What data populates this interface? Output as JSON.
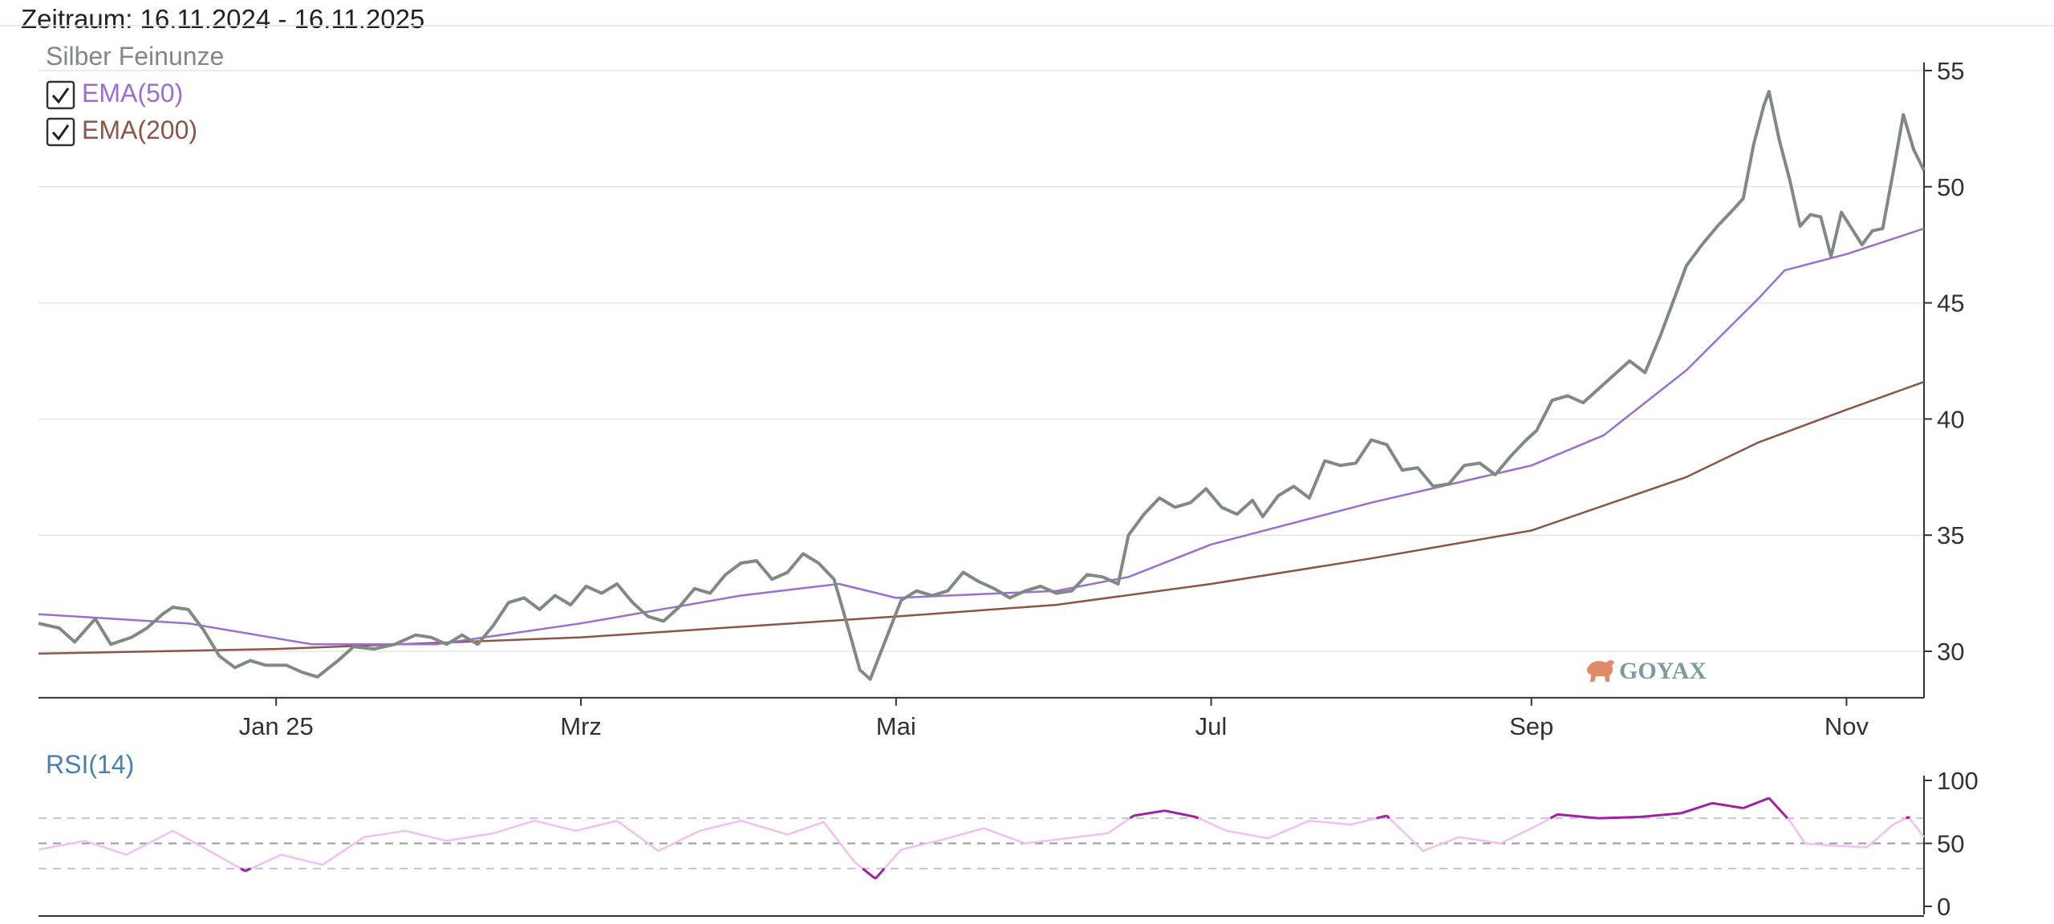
{
  "header": {
    "period_label": "Zeitraum: 16.11.2024 - 16.11.2025"
  },
  "watermark": {
    "text": "GOYAX",
    "icon": "bull-icon",
    "color": "#7d9aa3",
    "icon_color": "#e08a67"
  },
  "legend": [
    {
      "label": "Silber Feinunze",
      "color": "#7f8a80",
      "checkbox": false
    },
    {
      "label": "EMA(50)",
      "color": "#9b6fcf",
      "checkbox": true,
      "checked": true
    },
    {
      "label": "EMA(200)",
      "color": "#8c5547",
      "checkbox": true,
      "checked": true
    }
  ],
  "chart_data": [
    {
      "type": "line",
      "x_range": [
        "2024-11-16",
        "2025-11-16"
      ],
      "y_range": [
        28,
        55
      ],
      "grid": "horizontal",
      "x_ticks": [
        {
          "label": "Jan 25",
          "date": "2025-01-01"
        },
        {
          "label": "Mrz",
          "date": "2025-03-01"
        },
        {
          "label": "Mai",
          "date": "2025-05-01"
        },
        {
          "label": "Jul",
          "date": "2025-07-01"
        },
        {
          "label": "Sep",
          "date": "2025-09-01"
        },
        {
          "label": "Nov",
          "date": "2025-11-01"
        }
      ],
      "y_ticks": [
        30,
        35,
        40,
        45,
        50,
        55
      ],
      "series": [
        {
          "name": "Silber Feinunze",
          "color": "#7f8a80",
          "points": [
            [
              "2024-11-16",
              31.2
            ],
            [
              "2024-11-20",
              31.0
            ],
            [
              "2024-11-23",
              30.4
            ],
            [
              "2024-11-27",
              31.4
            ],
            [
              "2024-11-30",
              30.3
            ],
            [
              "2024-12-04",
              30.6
            ],
            [
              "2024-12-07",
              31.0
            ],
            [
              "2024-12-10",
              31.6
            ],
            [
              "2024-12-12",
              31.9
            ],
            [
              "2024-12-15",
              31.8
            ],
            [
              "2024-12-18",
              30.9
            ],
            [
              "2024-12-21",
              29.8
            ],
            [
              "2024-12-24",
              29.3
            ],
            [
              "2024-12-27",
              29.6
            ],
            [
              "2024-12-30",
              29.4
            ],
            [
              "2025-01-03",
              29.4
            ],
            [
              "2025-01-06",
              29.1
            ],
            [
              "2025-01-09",
              28.9
            ],
            [
              "2025-01-13",
              29.6
            ],
            [
              "2025-01-16",
              30.2
            ],
            [
              "2025-01-20",
              30.1
            ],
            [
              "2025-01-24",
              30.3
            ],
            [
              "2025-01-28",
              30.7
            ],
            [
              "2025-01-31",
              30.6
            ],
            [
              "2025-02-03",
              30.3
            ],
            [
              "2025-02-06",
              30.7
            ],
            [
              "2025-02-09",
              30.3
            ],
            [
              "2025-02-12",
              31.1
            ],
            [
              "2025-02-15",
              32.1
            ],
            [
              "2025-02-18",
              32.3
            ],
            [
              "2025-02-21",
              31.8
            ],
            [
              "2025-02-24",
              32.4
            ],
            [
              "2025-02-27",
              32.0
            ],
            [
              "2025-03-02",
              32.8
            ],
            [
              "2025-03-05",
              32.5
            ],
            [
              "2025-03-08",
              32.9
            ],
            [
              "2025-03-11",
              32.1
            ],
            [
              "2025-03-14",
              31.5
            ],
            [
              "2025-03-17",
              31.3
            ],
            [
              "2025-03-20",
              31.9
            ],
            [
              "2025-03-23",
              32.7
            ],
            [
              "2025-03-26",
              32.5
            ],
            [
              "2025-03-29",
              33.3
            ],
            [
              "2025-04-01",
              33.8
            ],
            [
              "2025-04-04",
              33.9
            ],
            [
              "2025-04-07",
              33.1
            ],
            [
              "2025-04-10",
              33.4
            ],
            [
              "2025-04-13",
              34.2
            ],
            [
              "2025-04-16",
              33.8
            ],
            [
              "2025-04-19",
              33.1
            ],
            [
              "2025-04-22",
              30.8
            ],
            [
              "2025-04-24",
              29.2
            ],
            [
              "2025-04-26",
              28.8
            ],
            [
              "2025-04-29",
              30.5
            ],
            [
              "2025-05-02",
              32.2
            ],
            [
              "2025-05-05",
              32.6
            ],
            [
              "2025-05-08",
              32.4
            ],
            [
              "2025-05-11",
              32.6
            ],
            [
              "2025-05-14",
              33.4
            ],
            [
              "2025-05-17",
              33.0
            ],
            [
              "2025-05-20",
              32.7
            ],
            [
              "2025-05-23",
              32.3
            ],
            [
              "2025-05-26",
              32.6
            ],
            [
              "2025-05-29",
              32.8
            ],
            [
              "2025-06-01",
              32.5
            ],
            [
              "2025-06-04",
              32.6
            ],
            [
              "2025-06-07",
              33.3
            ],
            [
              "2025-06-10",
              33.2
            ],
            [
              "2025-06-13",
              32.9
            ],
            [
              "2025-06-15",
              35.0
            ],
            [
              "2025-06-18",
              35.9
            ],
            [
              "2025-06-21",
              36.6
            ],
            [
              "2025-06-24",
              36.2
            ],
            [
              "2025-06-27",
              36.4
            ],
            [
              "2025-06-30",
              37.0
            ],
            [
              "2025-07-03",
              36.2
            ],
            [
              "2025-07-06",
              35.9
            ],
            [
              "2025-07-09",
              36.5
            ],
            [
              "2025-07-11",
              35.8
            ],
            [
              "2025-07-14",
              36.7
            ],
            [
              "2025-07-17",
              37.1
            ],
            [
              "2025-07-20",
              36.6
            ],
            [
              "2025-07-23",
              38.2
            ],
            [
              "2025-07-26",
              38.0
            ],
            [
              "2025-07-29",
              38.1
            ],
            [
              "2025-08-01",
              39.1
            ],
            [
              "2025-08-04",
              38.9
            ],
            [
              "2025-08-07",
              37.8
            ],
            [
              "2025-08-10",
              37.9
            ],
            [
              "2025-08-13",
              37.1
            ],
            [
              "2025-08-16",
              37.2
            ],
            [
              "2025-08-19",
              38.0
            ],
            [
              "2025-08-22",
              38.1
            ],
            [
              "2025-08-25",
              37.6
            ],
            [
              "2025-08-28",
              38.4
            ],
            [
              "2025-08-31",
              39.1
            ],
            [
              "2025-09-02",
              39.5
            ],
            [
              "2025-09-05",
              40.8
            ],
            [
              "2025-09-08",
              41.0
            ],
            [
              "2025-09-11",
              40.7
            ],
            [
              "2025-09-14",
              41.3
            ],
            [
              "2025-09-17",
              41.9
            ],
            [
              "2025-09-20",
              42.5
            ],
            [
              "2025-09-23",
              42.0
            ],
            [
              "2025-09-26",
              43.6
            ],
            [
              "2025-09-29",
              45.4
            ],
            [
              "2025-10-01",
              46.6
            ],
            [
              "2025-10-04",
              47.5
            ],
            [
              "2025-10-07",
              48.3
            ],
            [
              "2025-10-10",
              49.0
            ],
            [
              "2025-10-12",
              49.5
            ],
            [
              "2025-10-14",
              51.8
            ],
            [
              "2025-10-16",
              53.5
            ],
            [
              "2025-10-17",
              54.1
            ],
            [
              "2025-10-19",
              52.0
            ],
            [
              "2025-10-21",
              50.3
            ],
            [
              "2025-10-23",
              48.3
            ],
            [
              "2025-10-25",
              48.8
            ],
            [
              "2025-10-27",
              48.7
            ],
            [
              "2025-10-29",
              47.0
            ],
            [
              "2025-10-31",
              48.9
            ],
            [
              "2025-11-02",
              48.2
            ],
            [
              "2025-11-04",
              47.5
            ],
            [
              "2025-11-06",
              48.1
            ],
            [
              "2025-11-08",
              48.2
            ],
            [
              "2025-11-10",
              50.6
            ],
            [
              "2025-11-12",
              53.1
            ],
            [
              "2025-11-14",
              51.6
            ],
            [
              "2025-11-16",
              50.7
            ]
          ]
        },
        {
          "name": "EMA(50)",
          "color": "#9b6fcf",
          "points": [
            [
              "2024-11-16",
              31.6
            ],
            [
              "2024-12-15",
              31.2
            ],
            [
              "2025-01-08",
              30.3
            ],
            [
              "2025-02-01",
              30.3
            ],
            [
              "2025-03-01",
              31.2
            ],
            [
              "2025-04-01",
              32.4
            ],
            [
              "2025-04-20",
              32.9
            ],
            [
              "2025-05-01",
              32.3
            ],
            [
              "2025-06-01",
              32.6
            ],
            [
              "2025-06-15",
              33.2
            ],
            [
              "2025-07-01",
              34.6
            ],
            [
              "2025-08-01",
              36.4
            ],
            [
              "2025-09-01",
              38.0
            ],
            [
              "2025-09-15",
              39.3
            ],
            [
              "2025-10-01",
              42.1
            ],
            [
              "2025-10-15",
              45.2
            ],
            [
              "2025-10-20",
              46.4
            ],
            [
              "2025-11-01",
              47.1
            ],
            [
              "2025-11-16",
              48.2
            ]
          ]
        },
        {
          "name": "EMA(200)",
          "color": "#8c5547",
          "points": [
            [
              "2024-11-16",
              29.9
            ],
            [
              "2025-01-01",
              30.1
            ],
            [
              "2025-03-01",
              30.6
            ],
            [
              "2025-05-01",
              31.5
            ],
            [
              "2025-06-01",
              32.0
            ],
            [
              "2025-07-01",
              32.9
            ],
            [
              "2025-08-01",
              34.0
            ],
            [
              "2025-09-01",
              35.2
            ],
            [
              "2025-10-01",
              37.5
            ],
            [
              "2025-10-15",
              39.0
            ],
            [
              "2025-11-01",
              40.4
            ],
            [
              "2025-11-16",
              41.6
            ]
          ]
        }
      ]
    },
    {
      "type": "line",
      "title": "RSI(14)",
      "title_color": "#4a7fb5",
      "x_range": [
        "2024-11-16",
        "2025-11-16"
      ],
      "y_range": [
        0,
        100
      ],
      "y_ticks": [
        0,
        50,
        100
      ],
      "reference_lines": [
        30,
        50,
        70
      ],
      "overbought": 70,
      "oversold": 30,
      "series": [
        {
          "name": "RSI(14)",
          "color": "#f2bff2",
          "extreme_color": "#a020a0",
          "points": [
            [
              "2024-11-16",
              45
            ],
            [
              "2024-11-25",
              52
            ],
            [
              "2024-12-03",
              41
            ],
            [
              "2024-12-12",
              60
            ],
            [
              "2024-12-20",
              42
            ],
            [
              "2024-12-26",
              28
            ],
            [
              "2025-01-02",
              41
            ],
            [
              "2025-01-10",
              33
            ],
            [
              "2025-01-18",
              55
            ],
            [
              "2025-01-26",
              60
            ],
            [
              "2025-02-03",
              52
            ],
            [
              "2025-02-12",
              58
            ],
            [
              "2025-02-20",
              68
            ],
            [
              "2025-02-28",
              60
            ],
            [
              "2025-03-08",
              68
            ],
            [
              "2025-03-16",
              44
            ],
            [
              "2025-03-24",
              60
            ],
            [
              "2025-04-01",
              68
            ],
            [
              "2025-04-10",
              57
            ],
            [
              "2025-04-17",
              67
            ],
            [
              "2025-04-23",
              35
            ],
            [
              "2025-04-27",
              22
            ],
            [
              "2025-05-02",
              45
            ],
            [
              "2025-05-10",
              53
            ],
            [
              "2025-05-18",
              62
            ],
            [
              "2025-05-26",
              50
            ],
            [
              "2025-06-03",
              54
            ],
            [
              "2025-06-11",
              58
            ],
            [
              "2025-06-16",
              72
            ],
            [
              "2025-06-22",
              76
            ],
            [
              "2025-06-28",
              71
            ],
            [
              "2025-07-04",
              60
            ],
            [
              "2025-07-12",
              54
            ],
            [
              "2025-07-20",
              68
            ],
            [
              "2025-07-28",
              65
            ],
            [
              "2025-08-04",
              72
            ],
            [
              "2025-08-11",
              44
            ],
            [
              "2025-08-18",
              55
            ],
            [
              "2025-08-26",
              50
            ],
            [
              "2025-09-02",
              64
            ],
            [
              "2025-09-06",
              73
            ],
            [
              "2025-09-14",
              70
            ],
            [
              "2025-09-22",
              71
            ],
            [
              "2025-09-30",
              74
            ],
            [
              "2025-10-06",
              82
            ],
            [
              "2025-10-12",
              78
            ],
            [
              "2025-10-17",
              86
            ],
            [
              "2025-10-21",
              68
            ],
            [
              "2025-10-24",
              50
            ],
            [
              "2025-10-30",
              48
            ],
            [
              "2025-11-05",
              47
            ],
            [
              "2025-11-10",
              65
            ],
            [
              "2025-11-13",
              71
            ],
            [
              "2025-11-16",
              55
            ]
          ]
        }
      ]
    }
  ]
}
